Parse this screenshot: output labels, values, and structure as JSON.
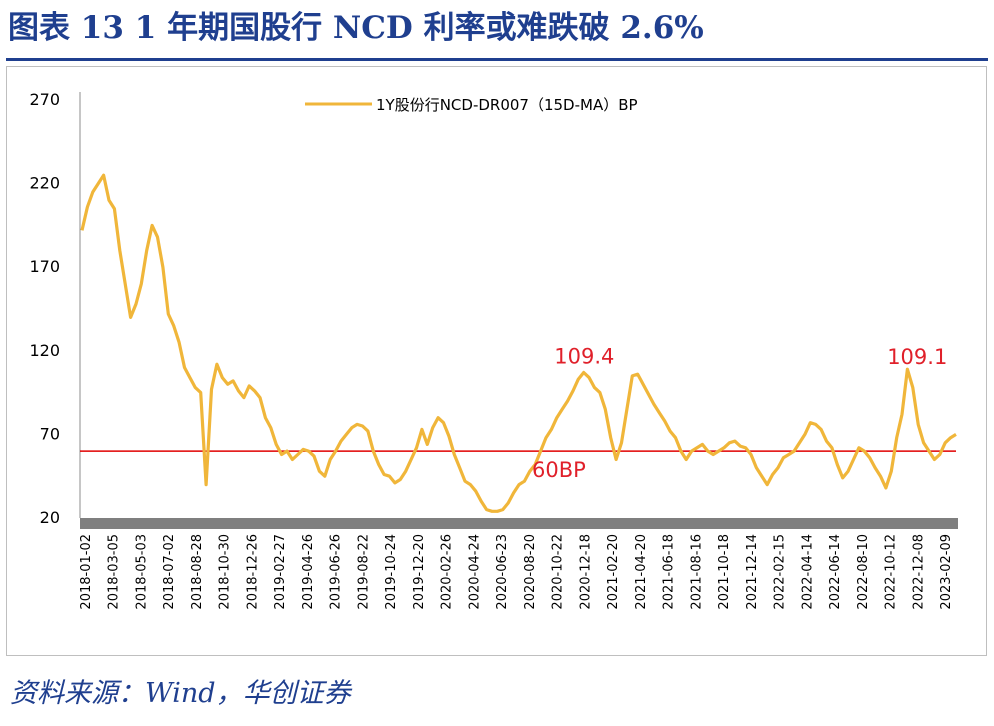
{
  "title": "图表 13  1 年期国股行 NCD 利率或难跌破 2.6%",
  "source": "资料来源：Wind，华创证券",
  "colors": {
    "title": "#1f3f8f",
    "series": "#f0b63a",
    "reference": "#e00000",
    "annotation": "#e0202a",
    "axis_band": "#7f7f7f"
  },
  "chart_data": {
    "type": "line",
    "legend": "top-center",
    "grid": false,
    "ylim": [
      20,
      270
    ],
    "yticks": [
      "270",
      "220",
      "170",
      "120",
      "70",
      "20"
    ],
    "xticks": [
      "2018-01-02",
      "2018-03-05",
      "2018-05-03",
      "2018-07-02",
      "2018-08-28",
      "2018-10-30",
      "2018-12-26",
      "2019-02-27",
      "2019-04-26",
      "2019-06-26",
      "2019-08-22",
      "2019-10-24",
      "2019-12-20",
      "2020-02-26",
      "2020-04-24",
      "2020-06-23",
      "2020-08-20",
      "2020-10-22",
      "2020-12-18",
      "2021-02-20",
      "2021-04-20",
      "2021-06-18",
      "2021-08-16",
      "2021-10-18",
      "2021-12-14",
      "2022-02-15",
      "2022-04-14",
      "2022-06-14",
      "2022-08-10",
      "2022-10-12",
      "2022-12-08",
      "2023-02-09"
    ],
    "series": [
      {
        "name": "1Y股份行NCD-DR007（15D-MA）BP",
        "color": "#f0b63a",
        "values": [
          192,
          206,
          215,
          220,
          225,
          210,
          205,
          180,
          160,
          140,
          148,
          160,
          180,
          195,
          188,
          170,
          142,
          135,
          125,
          110,
          104,
          98,
          95,
          40,
          97,
          112,
          104,
          100,
          102,
          96,
          92,
          99,
          96,
          92,
          80,
          74,
          64,
          58,
          60,
          55,
          58,
          61,
          60,
          57,
          48,
          45,
          55,
          60,
          66,
          70,
          74,
          76,
          75,
          72,
          60,
          52,
          46,
          45,
          41,
          43,
          48,
          55,
          62,
          73,
          64,
          74,
          80,
          77,
          69,
          58,
          50,
          42,
          40,
          36,
          30,
          25,
          24,
          24,
          25,
          29,
          35,
          40,
          42,
          48,
          52,
          60,
          68,
          73,
          80,
          85,
          90,
          96,
          103,
          107,
          104,
          98,
          95,
          85,
          68,
          55,
          65,
          85,
          105,
          106,
          100,
          94,
          88,
          83,
          78,
          72,
          68,
          60,
          55,
          60,
          62,
          64,
          60,
          58,
          60,
          62,
          65,
          66,
          63,
          62,
          58,
          50,
          45,
          40,
          46,
          50,
          56,
          58,
          60,
          65,
          70,
          77,
          76,
          73,
          66,
          62,
          52,
          44,
          48,
          55,
          62,
          60,
          56,
          50,
          45,
          38,
          48,
          68,
          82,
          109,
          98,
          76,
          65,
          60,
          55,
          58,
          65,
          68,
          70
        ]
      }
    ],
    "annotations": [
      {
        "text": "109.4",
        "x": "2020-12-18",
        "y": 109.4
      },
      {
        "text": "109.1",
        "x": "2022-12-08",
        "y": 109.1
      },
      {
        "text": "60BP",
        "x": "2020-08-20",
        "y": 60
      }
    ],
    "reference_line": {
      "y": 60,
      "label": "60BP"
    }
  }
}
